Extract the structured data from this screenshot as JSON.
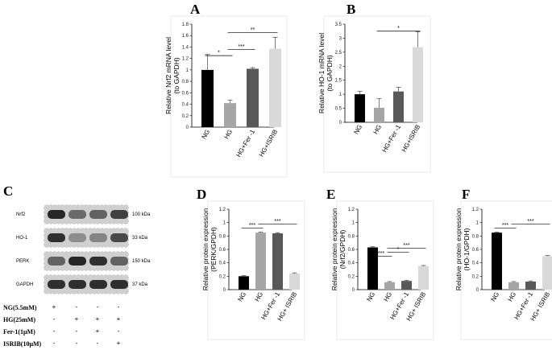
{
  "panel_labels": {
    "A": "A",
    "B": "B",
    "C": "C",
    "D": "D",
    "E": "E",
    "F": "F"
  },
  "chart_data": [
    {
      "id": "A",
      "type": "bar",
      "ylabel": "Relative Nrf2 mRNA level\n(to GAPDH)",
      "categories": [
        "NG",
        "HG",
        "HG+Fer -1",
        "HG+ISRIB"
      ],
      "values": [
        1.0,
        0.42,
        1.02,
        1.37
      ],
      "errors": [
        0.27,
        0.05,
        0.02,
        0.2
      ],
      "colors": [
        "#000000",
        "#a6a6a6",
        "#595959",
        "#d9d9d9"
      ],
      "ylim": [
        0,
        1.8
      ],
      "yticks": [
        "0",
        "0.2",
        "0.4",
        "0.6",
        "0.8",
        "1",
        "1.2",
        "1.4",
        "1.6",
        "1.8"
      ],
      "significance": [
        {
          "from": 0,
          "to": 1,
          "label": "*",
          "y": 1.25
        },
        {
          "from": 1,
          "to": 2,
          "label": "***",
          "y": 1.36
        },
        {
          "from": 1,
          "to": 3,
          "label": "**",
          "y": 1.65
        }
      ]
    },
    {
      "id": "B",
      "type": "bar",
      "ylabel": "Relative HO-1 mRNA level\n(to GAPDH)",
      "categories": [
        "NG",
        "HG",
        "HG+Fer -1",
        "HG+ISRIB"
      ],
      "values": [
        1.0,
        0.52,
        1.1,
        2.68
      ],
      "errors": [
        0.1,
        0.32,
        0.15,
        0.55
      ],
      "colors": [
        "#000000",
        "#a6a6a6",
        "#595959",
        "#d9d9d9"
      ],
      "ylim": [
        0,
        3.5
      ],
      "yticks": [
        "0",
        "0.5",
        "1",
        "1.5",
        "2",
        "2.5",
        "3",
        "3.5"
      ],
      "significance": [
        {
          "from": 1,
          "to": 3,
          "label": "*",
          "y": 3.25
        }
      ]
    },
    {
      "id": "D",
      "type": "bar",
      "ylabel": "Relative protein expression\n(PERK/GPDH)",
      "categories": [
        "NG",
        "HG",
        "HG+Fer -1",
        "HG+ ISRIB"
      ],
      "values": [
        0.2,
        0.85,
        0.84,
        0.24
      ],
      "errors": [
        0.01,
        0.01,
        0.01,
        0.01
      ],
      "colors": [
        "#000000",
        "#a6a6a6",
        "#595959",
        "#d9d9d9"
      ],
      "ylim": [
        0,
        1.2
      ],
      "yticks": [
        "0",
        "0.2",
        "0.4",
        "0.6",
        "0.8",
        "1",
        "1.2"
      ],
      "significance": [
        {
          "from": 0,
          "to": 1,
          "label": "***",
          "y": 0.92
        },
        {
          "from": 1,
          "to": 3,
          "label": "***",
          "y": 0.98
        }
      ]
    },
    {
      "id": "E",
      "type": "bar",
      "ylabel": "Relative protein expression\n(Nrf2/GPDH)",
      "categories": [
        "NG",
        "HG",
        "HG+Fer -1",
        "HG+ ISRIB"
      ],
      "values": [
        0.63,
        0.11,
        0.13,
        0.35
      ],
      "errors": [
        0.01,
        0.01,
        0.01,
        0.01
      ],
      "colors": [
        "#000000",
        "#a6a6a6",
        "#595959",
        "#d9d9d9"
      ],
      "ylim": [
        0,
        1.2
      ],
      "yticks": [
        "0",
        "0.2",
        "0.4",
        "0.6",
        "0.8",
        "1",
        "1.2"
      ],
      "significance": [
        {
          "from": 0,
          "to": 1,
          "label": "***",
          "y": 0.5
        },
        {
          "from": 1,
          "to": 2,
          "label": "*",
          "y": 0.56
        },
        {
          "from": 1,
          "to": 3,
          "label": "***",
          "y": 0.62
        }
      ]
    },
    {
      "id": "F",
      "type": "bar",
      "ylabel": "Relative protein expression\n(HO-1/GPDH)",
      "categories": [
        "NG",
        "HG",
        "HG+Fer -1",
        "HG+ ISRIB"
      ],
      "values": [
        0.85,
        0.11,
        0.12,
        0.5
      ],
      "errors": [
        0.01,
        0.01,
        0.01,
        0.01
      ],
      "colors": [
        "#000000",
        "#a6a6a6",
        "#595959",
        "#d9d9d9"
      ],
      "ylim": [
        0,
        1.2
      ],
      "yticks": [
        "0",
        "0.2",
        "0.4",
        "0.6",
        "0.8",
        "1",
        "1.2"
      ],
      "significance": [
        {
          "from": 0,
          "to": 1,
          "label": "***",
          "y": 0.92
        },
        {
          "from": 1,
          "to": 3,
          "label": "***",
          "y": 0.98
        }
      ]
    }
  ],
  "western_blot": {
    "rows": [
      {
        "protein": "Nrf2",
        "kda": "100 kDa",
        "bands": [
          0.95,
          0.55,
          0.6,
          0.8
        ]
      },
      {
        "protein": "HO-1",
        "kda": "33 kDa",
        "bands": [
          0.9,
          0.35,
          0.4,
          0.75
        ]
      },
      {
        "protein": "PERK",
        "kda": "150 kDa",
        "bands": [
          0.6,
          0.95,
          0.9,
          0.6
        ]
      },
      {
        "protein": "GAPDH",
        "kda": "37 kDa",
        "bands": [
          0.9,
          0.9,
          0.9,
          0.9
        ]
      }
    ],
    "treatments": [
      {
        "label": "NG(5.5mM)",
        "signs": [
          "+",
          "-",
          "-",
          "-"
        ]
      },
      {
        "label": "HG(25mM)",
        "signs": [
          "-",
          "+",
          "+",
          "+"
        ]
      },
      {
        "label": "Fer-1(1μM)",
        "signs": [
          "-",
          "-",
          "+",
          "-"
        ]
      },
      {
        "label": "ISRIB(10μM)",
        "signs": [
          "-",
          "-",
          "-",
          "+"
        ]
      }
    ]
  }
}
